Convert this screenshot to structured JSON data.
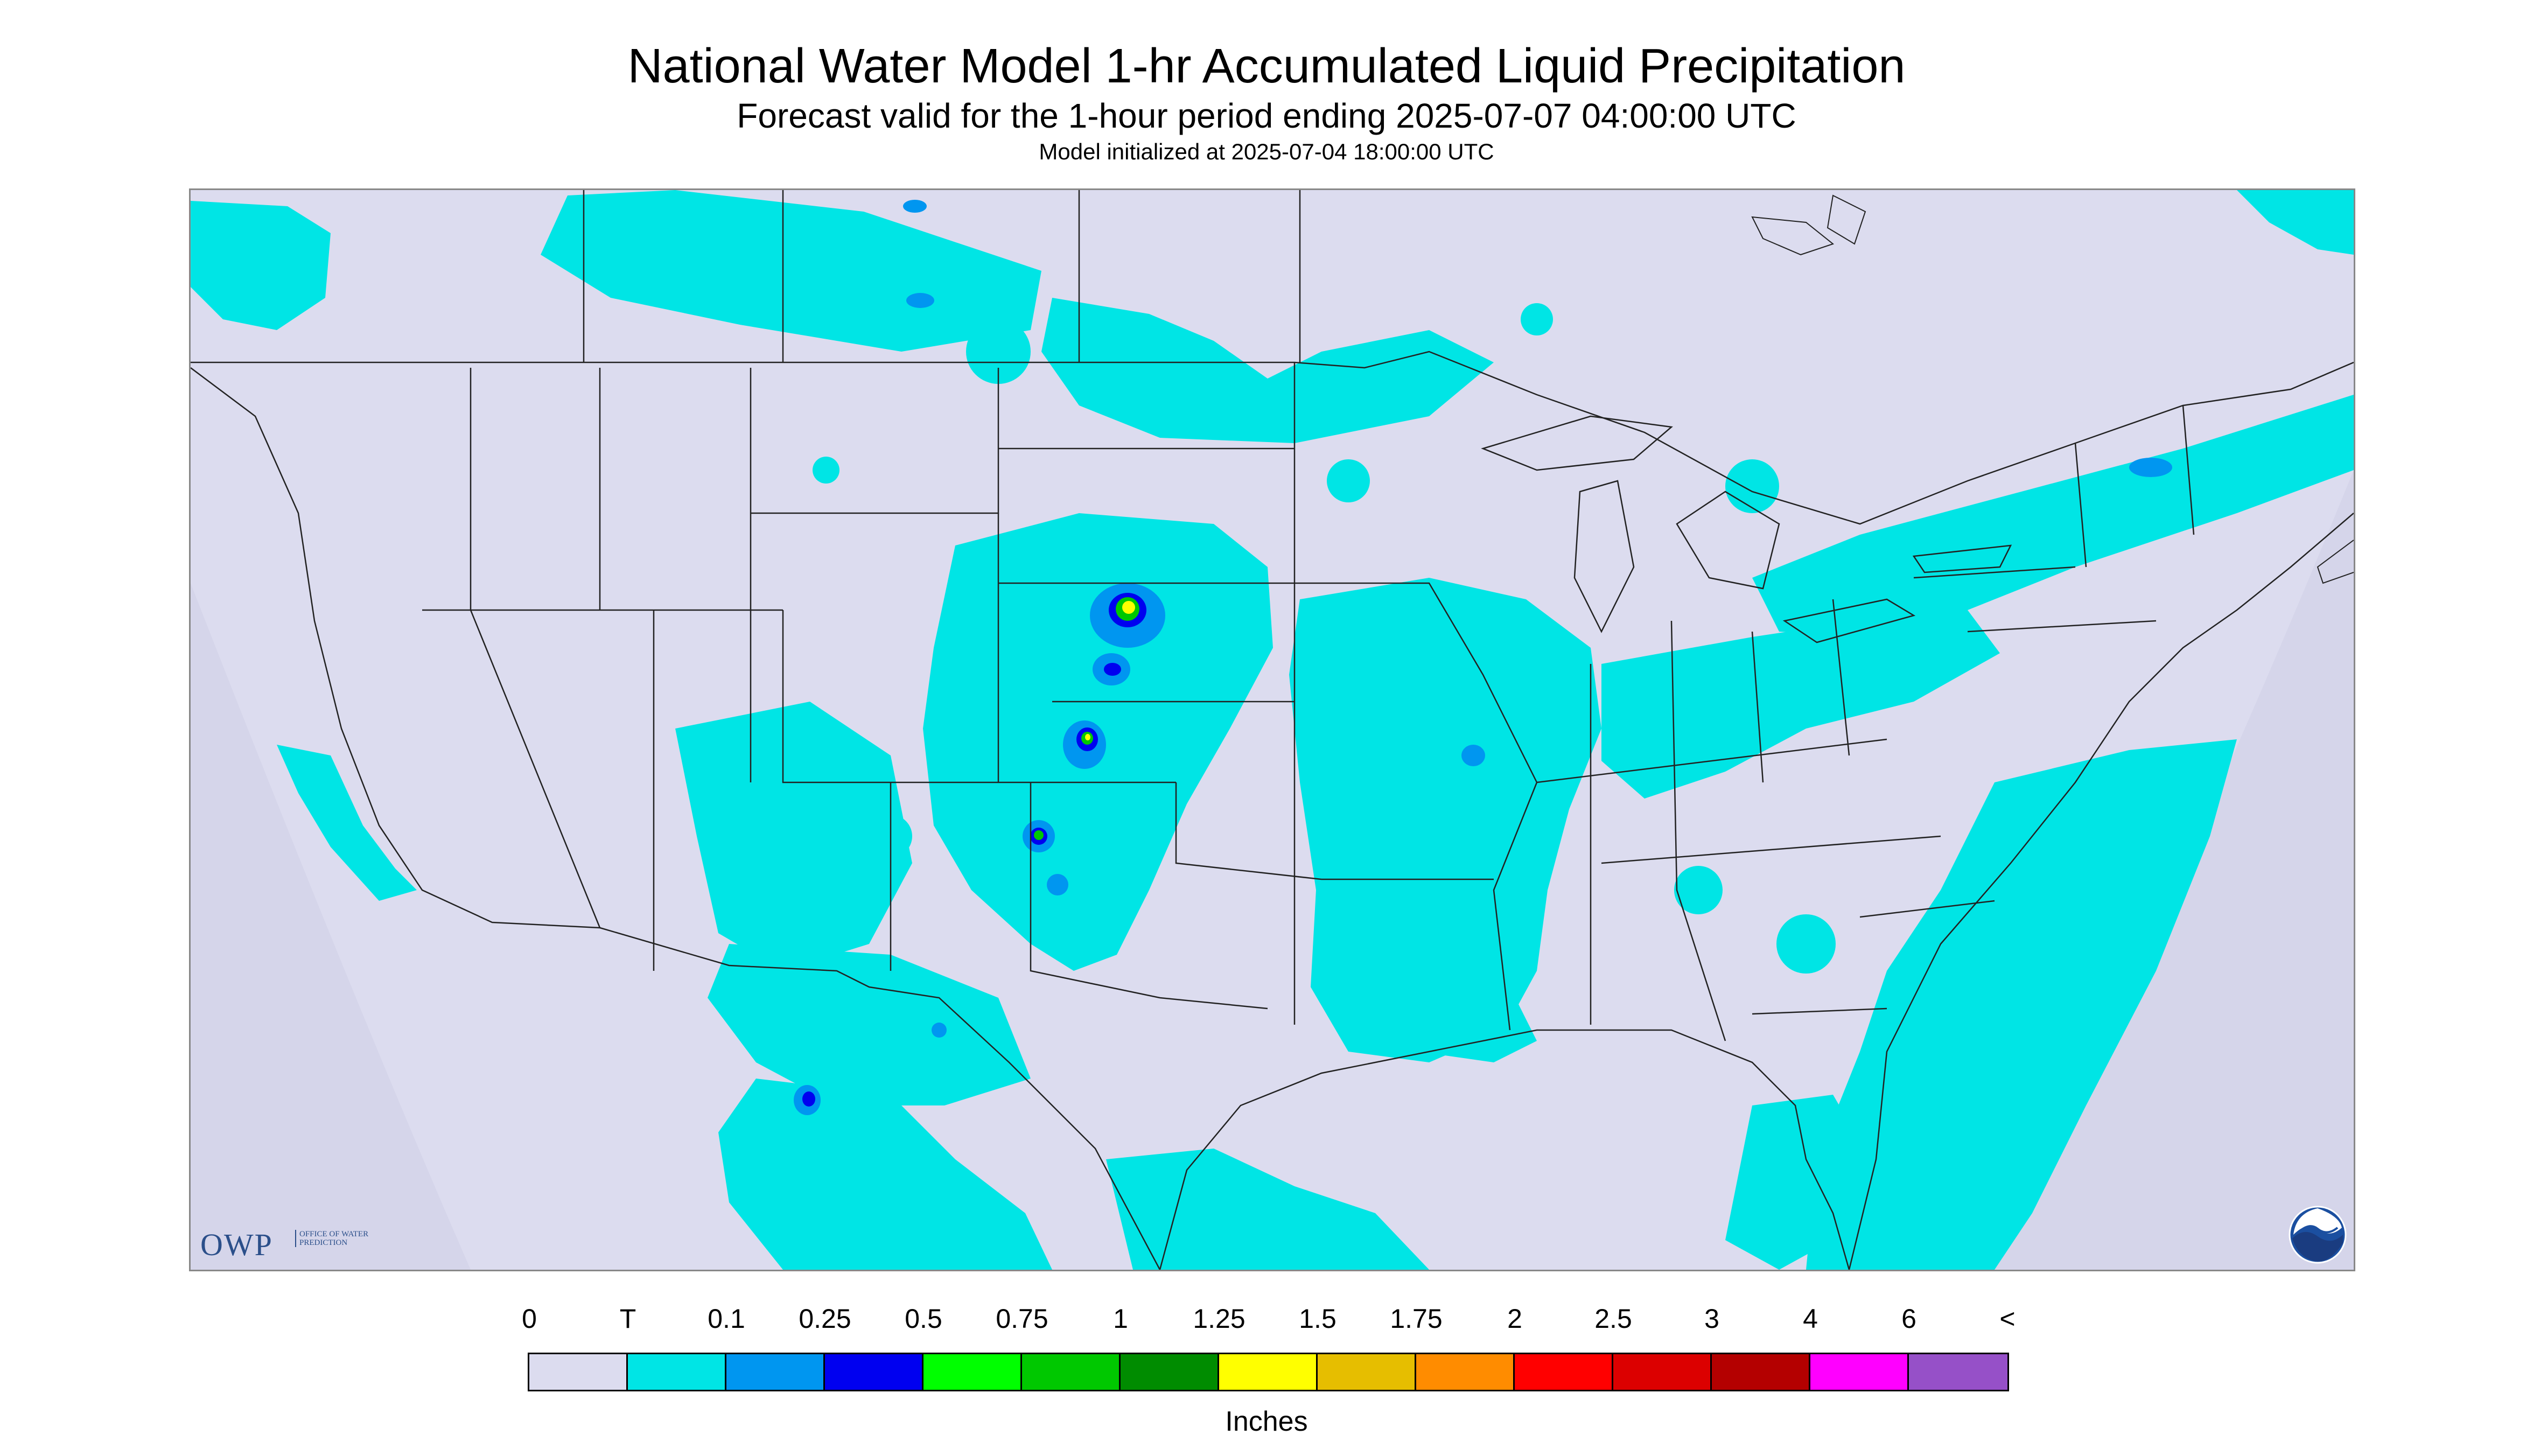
{
  "header": {
    "title": "National Water Model 1-hr Accumulated Liquid Precipitation",
    "subtitle": "Forecast valid for the 1-hour period ending 2025-07-07 04:00:00 UTC",
    "init": "Model initialized at 2025-07-04 18:00:00 UTC"
  },
  "logos": {
    "owp_text": "OWP",
    "owp_sub": "OFFICE OF WATER PREDICTION",
    "noaa_text": "NOAA"
  },
  "legend": {
    "labels": [
      "0",
      "T",
      "0.1",
      "0.25",
      "0.5",
      "0.75",
      "1",
      "1.25",
      "1.5",
      "1.75",
      "2",
      "2.5",
      "3",
      "4",
      "6",
      "<"
    ],
    "colors": [
      "#dcdcef",
      "#00e5e5",
      "#0096f0",
      "#0000f0",
      "#00ff00",
      "#00c800",
      "#008c00",
      "#ffff00",
      "#e6be00",
      "#ff8c00",
      "#ff0000",
      "#dc0000",
      "#b40000",
      "#ff00ff",
      "#9650c8"
    ],
    "units": "Inches"
  },
  "map": {
    "background_color": "#dcdcef",
    "outside_domain_color": "#d2d2e6",
    "trace_color": "#00e5e5",
    "point_one_color": "#0096f0",
    "half_inch_color": "#0000f0",
    "one_inch_color": "#00c800",
    "one_half_inch_color": "#ffff00"
  }
}
